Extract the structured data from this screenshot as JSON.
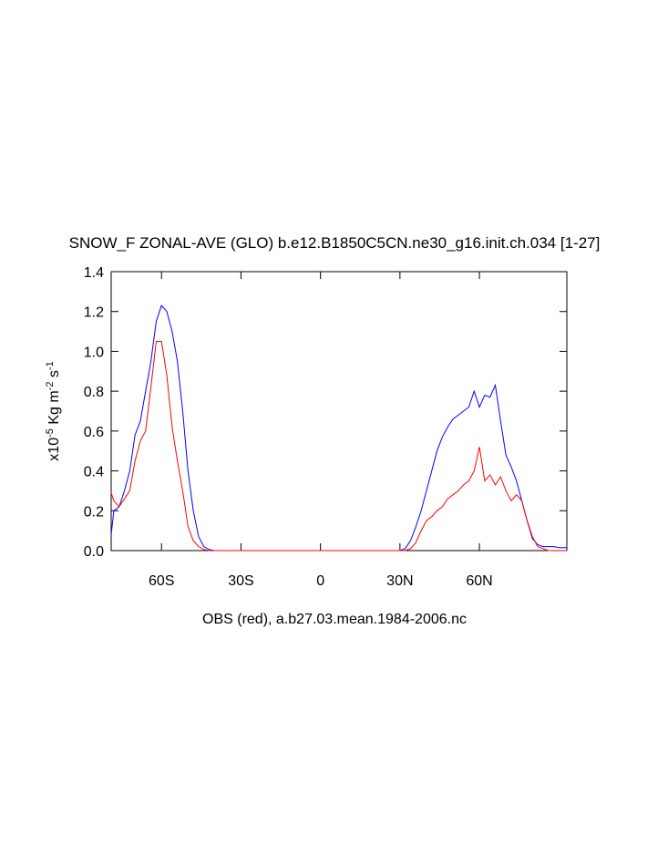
{
  "chart_data": {
    "type": "line",
    "title": "SNOW_F ZONAL-AVE (GLO) b.e12.B1850C5CN.ne30_g16.init.ch.034 [1-27]",
    "xlabel": "OBS (red), a.b27.03.mean.1984-2006.nc",
    "ylabel": [
      {
        "text": "x10"
      },
      {
        "text": "-5",
        "sup": true
      },
      {
        "text": " Kg m"
      },
      {
        "text": "-2",
        "sup": true
      },
      {
        "text": " s"
      },
      {
        "text": "-1",
        "sup": true
      }
    ],
    "x": [
      -79,
      -78,
      -76,
      -74,
      -72,
      -70,
      -68,
      -66,
      -64,
      -62,
      -60,
      -58,
      -56,
      -54,
      -52,
      -50,
      -48,
      -46,
      -44,
      -42,
      -40,
      -30,
      -20,
      -10,
      0,
      10,
      20,
      30,
      32,
      34,
      36,
      38,
      40,
      42,
      44,
      46,
      48,
      50,
      52,
      54,
      56,
      58,
      60,
      62,
      64,
      66,
      68,
      70,
      72,
      74,
      76,
      78,
      80,
      82,
      84,
      86,
      88,
      90,
      93
    ],
    "series": [
      {
        "color": "#0000ff",
        "values": [
          0.08,
          0.2,
          0.22,
          0.3,
          0.4,
          0.58,
          0.65,
          0.8,
          0.95,
          1.15,
          1.23,
          1.2,
          1.1,
          0.95,
          0.7,
          0.4,
          0.2,
          0.07,
          0.02,
          0.005,
          0,
          0,
          0,
          0,
          0,
          0,
          0,
          0,
          0.01,
          0.05,
          0.12,
          0.2,
          0.3,
          0.4,
          0.5,
          0.57,
          0.62,
          0.66,
          0.68,
          0.7,
          0.72,
          0.8,
          0.72,
          0.78,
          0.77,
          0.83,
          0.65,
          0.48,
          0.42,
          0.35,
          0.25,
          0.15,
          0.06,
          0.03,
          0.02,
          0.02,
          0.02,
          0.015,
          0.015
        ]
      },
      {
        "color": "#ff0000",
        "values": [
          0.29,
          0.25,
          0.22,
          0.26,
          0.3,
          0.45,
          0.55,
          0.6,
          0.82,
          1.05,
          1.05,
          0.88,
          0.62,
          0.45,
          0.3,
          0.12,
          0.05,
          0.02,
          0.005,
          0,
          0,
          0,
          0,
          0,
          0,
          0,
          0,
          0,
          0,
          0.01,
          0.04,
          0.1,
          0.15,
          0.17,
          0.2,
          0.22,
          0.26,
          0.28,
          0.3,
          0.33,
          0.35,
          0.4,
          0.52,
          0.35,
          0.38,
          0.33,
          0.37,
          0.3,
          0.25,
          0.28,
          0.25,
          0.15,
          0.07,
          0.02,
          0.01,
          0,
          0,
          0,
          0
        ]
      }
    ],
    "xlim": [
      -79,
      93
    ],
    "xticks": [
      {
        "value": -60,
        "label": "60S"
      },
      {
        "value": -30,
        "label": "30S"
      },
      0,
      {
        "value": 30,
        "label": "30N"
      },
      {
        "value": 60,
        "label": "60N"
      }
    ],
    "ylim": [
      0,
      1.4
    ],
    "yticks": [
      {
        "value": 0,
        "label": "0.0"
      },
      0.2,
      0.4,
      0.6,
      0.8,
      {
        "value": 1,
        "label": "1.0"
      },
      1.2,
      1.4
    ],
    "grid": false
  }
}
